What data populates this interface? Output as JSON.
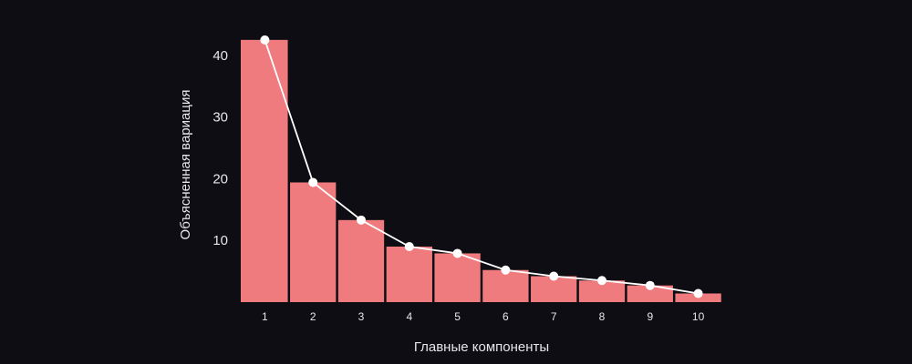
{
  "chart_data": {
    "type": "bar",
    "title": "",
    "xlabel": "Главные компоненты",
    "ylabel": "Объясненная вариация",
    "categories": [
      "1",
      "2",
      "3",
      "4",
      "5",
      "6",
      "7",
      "8",
      "9",
      "10"
    ],
    "series": [
      {
        "type": "bar",
        "values": [
          42.5,
          19.4,
          13.3,
          9.0,
          7.9,
          5.2,
          4.2,
          3.5,
          2.7,
          1.4
        ]
      },
      {
        "type": "line",
        "values": [
          42.5,
          19.4,
          13.3,
          9.0,
          7.9,
          5.2,
          4.2,
          3.5,
          2.7,
          1.4
        ]
      }
    ],
    "y_ticks": [
      10,
      20,
      30,
      40
    ],
    "ylim": [
      0,
      44
    ],
    "grid": false,
    "legend": "none",
    "colors": {
      "background": "#0e0d13",
      "bar": "#f07b7f",
      "line": "#ffffff",
      "marker": "#ffffff",
      "text": "#e6e6ea"
    }
  }
}
